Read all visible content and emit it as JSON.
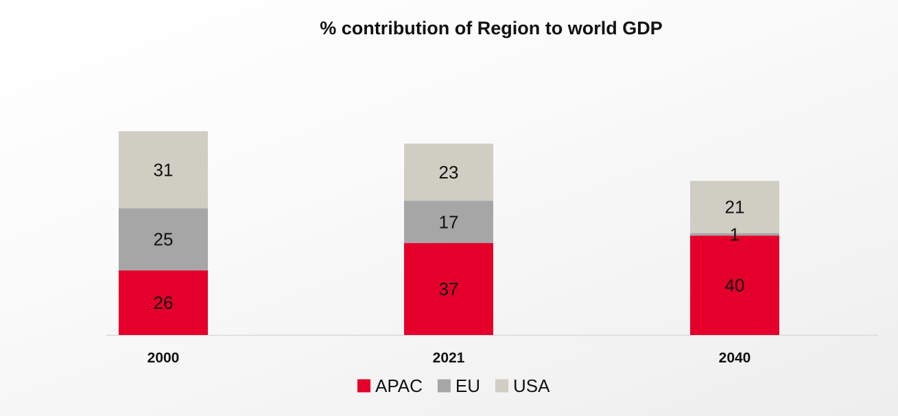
{
  "chart_data": {
    "type": "bar",
    "stacked": true,
    "title": "% contribution of Region to world GDP",
    "xlabel": "",
    "ylabel": "",
    "categories": [
      "2000",
      "2021",
      "2040"
    ],
    "series": [
      {
        "name": "APAC",
        "color": "#e4002b",
        "values": [
          26,
          37,
          40
        ]
      },
      {
        "name": "EU",
        "color": "#a6a6a6",
        "values": [
          25,
          17,
          1
        ]
      },
      {
        "name": "USA",
        "color": "#d0cdc3",
        "values": [
          31,
          23,
          21
        ]
      }
    ],
    "ylim": [
      0,
      82
    ],
    "grid": false,
    "data_labels": true,
    "legend": "bottom-center"
  }
}
